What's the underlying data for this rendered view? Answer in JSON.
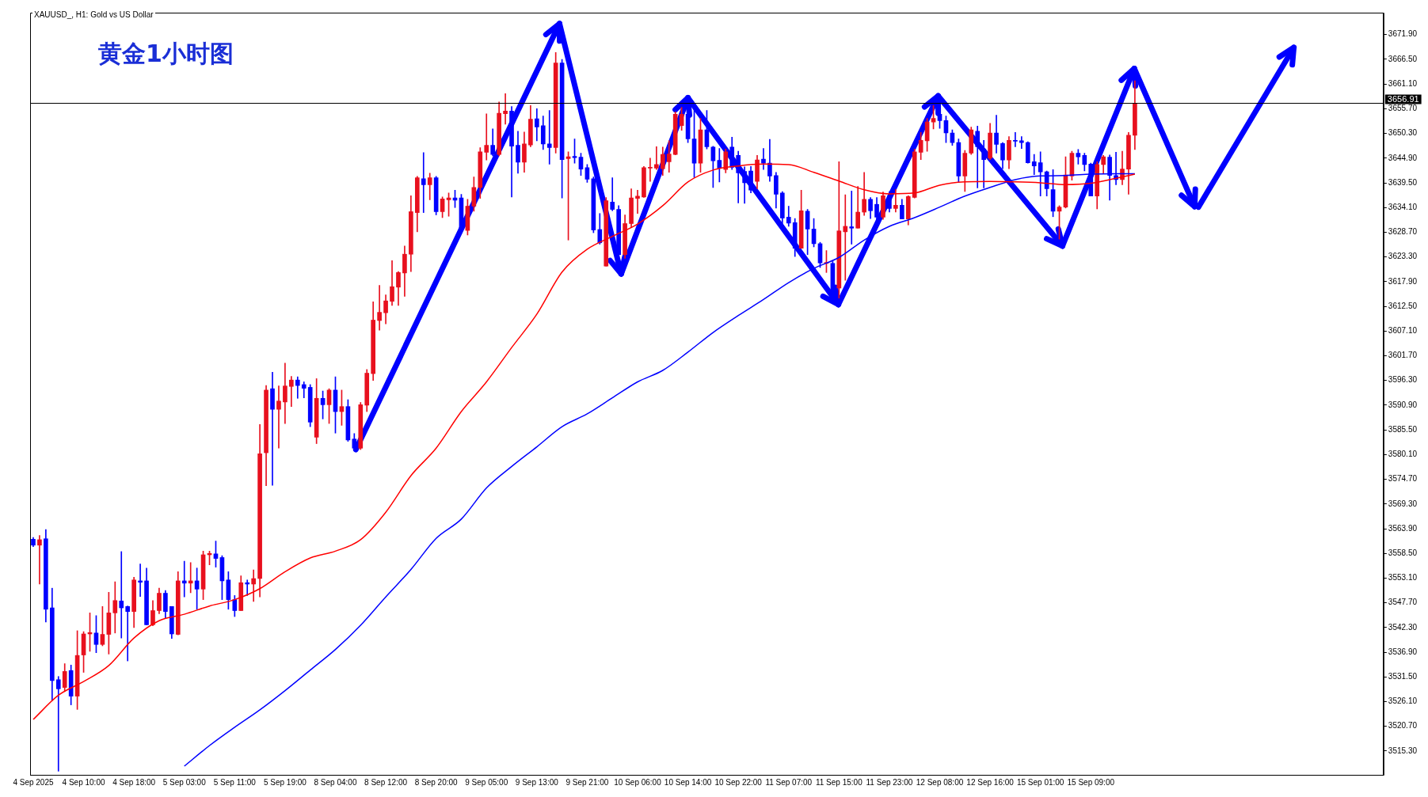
{
  "chart_data": {
    "type": "candlestick",
    "title": "黄金1小时图",
    "subtitle": "XAUUSD_, H1: Gold vs US Dollar",
    "categories": [
      "4 Sep 2025",
      null,
      null,
      null,
      null,
      null,
      null,
      null,
      "4 Sep 10:00",
      null,
      null,
      null,
      null,
      null,
      null,
      null,
      "4 Sep 18:00",
      null,
      null,
      null,
      null,
      null,
      null,
      null,
      "5 Sep 03:00",
      null,
      null,
      null,
      null,
      null,
      null,
      null,
      "5 Sep 11:00",
      null,
      null,
      null,
      null,
      null,
      null,
      null,
      "5 Sep 19:00",
      null,
      null,
      null,
      null,
      null,
      null,
      null,
      "8 Sep 04:00",
      null,
      null,
      null,
      null,
      null,
      null,
      null,
      "8 Sep 12:00",
      null,
      null,
      null,
      null,
      null,
      null,
      null,
      "8 Sep 20:00",
      null,
      null,
      null,
      null,
      null,
      null,
      null,
      "9 Sep 05:00",
      null,
      null,
      null,
      null,
      null,
      null,
      null,
      "9 Sep 13:00",
      null,
      null,
      null,
      null,
      null,
      null,
      null,
      "9 Sep 21:00",
      null,
      null,
      null,
      null,
      null,
      null,
      null,
      "10 Sep 06:00",
      null,
      null,
      null,
      null,
      null,
      null,
      null,
      "10 Sep 14:00",
      null,
      null,
      null,
      null,
      null,
      null,
      null,
      "10 Sep 22:00",
      null,
      null,
      null,
      null,
      null,
      null,
      null,
      "11 Sep 07:00",
      null,
      null,
      null,
      null,
      null,
      null,
      null,
      "11 Sep 15:00",
      null,
      null,
      null,
      null,
      null,
      null,
      null,
      "11 Sep 23:00",
      null,
      null,
      null,
      null,
      null,
      null,
      null,
      "12 Sep 08:00",
      null,
      null,
      null,
      null,
      null,
      null,
      null,
      "12 Sep 16:00",
      null,
      null,
      null,
      null,
      null,
      null,
      null,
      "15 Sep 01:00",
      null,
      null,
      null,
      null,
      null,
      null,
      null,
      "15 Sep 09:00",
      null,
      null,
      null,
      null,
      null,
      null,
      null,
      null,
      null,
      null,
      null,
      null,
      null,
      null,
      null,
      null,
      null,
      null,
      null,
      null,
      null,
      null,
      null,
      null,
      null,
      null,
      null,
      null,
      null,
      null,
      null,
      null,
      null,
      null,
      null,
      null,
      null,
      null,
      null,
      null,
      null,
      null,
      null,
      null,
      null,
      null
    ],
    "ohlc": [
      [
        3561.6,
        3562.0,
        3560.0,
        3560.3
      ],
      [
        3560.3,
        3562.4,
        3551.8,
        3561.5
      ],
      [
        3561.7,
        3563.7,
        3543.5,
        3546.3
      ],
      [
        3546.6,
        3550.9,
        3526.4,
        3530.7
      ],
      [
        3530.9,
        3531.6,
        3510.9,
        3528.9
      ],
      [
        3529.2,
        3534.4,
        3528.3,
        3532.7
      ],
      [
        3532.9,
        3534.1,
        3525.4,
        3527.3
      ],
      [
        3527.3,
        3541.6,
        3524.4,
        3536.2
      ],
      [
        3536.3,
        3541.4,
        3532.5,
        3540.9
      ],
      [
        3540.9,
        3545.5,
        3537.1,
        3541.2
      ],
      [
        3541.1,
        3544.9,
        3536.8,
        3538.6
      ],
      [
        3538.6,
        3546.9,
        3538.3,
        3540.8
      ],
      [
        3540.8,
        3550.0,
        3536.5,
        3545.5
      ],
      [
        3545.5,
        3552.3,
        3541.1,
        3548.2
      ],
      [
        3548.1,
        3558.9,
        3540.0,
        3546.6
      ],
      [
        3546.9,
        3547.0,
        3535.0,
        3545.8
      ],
      [
        3545.8,
        3553.3,
        3542.3,
        3552.7
      ],
      [
        3552.5,
        3556.2,
        3549.1,
        3552.2
      ],
      [
        3552.5,
        3555.3,
        3542.9,
        3542.9
      ],
      [
        3542.9,
        3548.2,
        3542.7,
        3546.0
      ],
      [
        3546.0,
        3550.9,
        3545.3,
        3549.8
      ],
      [
        3549.8,
        3550.4,
        3544.4,
        3545.8
      ],
      [
        3546.9,
        3546.9,
        3539.9,
        3540.9
      ],
      [
        3540.8,
        3554.5,
        3540.7,
        3552.5
      ],
      [
        3552.5,
        3556.8,
        3549.0,
        3552.0
      ],
      [
        3552.0,
        3556.5,
        3549.9,
        3552.5
      ],
      [
        3552.5,
        3555.3,
        3546.3,
        3550.7
      ],
      [
        3550.7,
        3559.0,
        3548.4,
        3558.2
      ],
      [
        3558.2,
        3559.0,
        3556.0,
        3558.5
      ],
      [
        3558.4,
        3561.2,
        3555.5,
        3557.4
      ],
      [
        3557.6,
        3558.0,
        3548.4,
        3552.5
      ],
      [
        3552.7,
        3554.5,
        3546.3,
        3548.4
      ],
      [
        3548.4,
        3549.3,
        3544.7,
        3546.0
      ],
      [
        3546.0,
        3553.6,
        3546.0,
        3552.1
      ],
      [
        3552.1,
        3552.7,
        3549.3,
        3551.8
      ],
      [
        3551.8,
        3554.9,
        3548.0,
        3553.0
      ],
      [
        3553.0,
        3586.7,
        3549.0,
        3580.3
      ],
      [
        3580.5,
        3595.2,
        3573.3,
        3594.2
      ],
      [
        3594.5,
        3598.1,
        3573.4,
        3590.0
      ],
      [
        3590.0,
        3595.1,
        3581.5,
        3591.8
      ],
      [
        3591.6,
        3600.1,
        3586.9,
        3595.1
      ],
      [
        3595.0,
        3597.2,
        3590.6,
        3596.4
      ],
      [
        3596.4,
        3597.1,
        3592.4,
        3595.2
      ],
      [
        3595.4,
        3596.0,
        3592.5,
        3594.6
      ],
      [
        3594.8,
        3595.4,
        3586.2,
        3587.2
      ],
      [
        3583.9,
        3596.7,
        3582.5,
        3592.4
      ],
      [
        3592.4,
        3594.0,
        3587.9,
        3591.0
      ],
      [
        3591.0,
        3594.5,
        3586.9,
        3594.2
      ],
      [
        3594.2,
        3597.1,
        3584.8,
        3589.5
      ],
      [
        3589.5,
        3594.2,
        3586.5,
        3590.6
      ],
      [
        3590.6,
        3592.1,
        3583.0,
        3583.3
      ],
      [
        3583.5,
        3584.7,
        3581.2,
        3581.5
      ],
      [
        3581.5,
        3591.5,
        3581.2,
        3591.0
      ],
      [
        3590.9,
        3598.7,
        3589.5,
        3597.9
      ],
      [
        3597.8,
        3613.5,
        3596.3,
        3609.5
      ],
      [
        3609.4,
        3617.1,
        3607.3,
        3611.2
      ],
      [
        3611.1,
        3615.0,
        3608.7,
        3613.7
      ],
      [
        3613.6,
        3622.5,
        3612.7,
        3616.8
      ],
      [
        3616.7,
        3620.1,
        3612.7,
        3619.9
      ],
      [
        3619.8,
        3625.7,
        3614.7,
        3623.9
      ],
      [
        3623.9,
        3636.7,
        3620.1,
        3633.2
      ],
      [
        3633.0,
        3640.9,
        3628.8,
        3640.6
      ],
      [
        3640.4,
        3646.1,
        3633.0,
        3639.1
      ],
      [
        3639.1,
        3641.6,
        3635.8,
        3640.6
      ],
      [
        3640.6,
        3640.9,
        3632.5,
        3633.2
      ],
      [
        3633.2,
        3636.4,
        3631.9,
        3636.0
      ],
      [
        3635.8,
        3637.3,
        3632.2,
        3636.2
      ],
      [
        3636.2,
        3637.9,
        3634.1,
        3635.7
      ],
      [
        3636.2,
        3637.0,
        3629.1,
        3629.4
      ],
      [
        3629.1,
        3635.9,
        3628.1,
        3634.4
      ],
      [
        3634.4,
        3640.8,
        3633.3,
        3638.5
      ],
      [
        3638.5,
        3647.2,
        3636.1,
        3646.3
      ],
      [
        3646.2,
        3654.6,
        3644.5,
        3647.7
      ],
      [
        3647.7,
        3651.3,
        3645.4,
        3645.7
      ],
      [
        3645.7,
        3657.2,
        3645.4,
        3654.7
      ],
      [
        3654.6,
        3659.0,
        3652.3,
        3655.2
      ],
      [
        3655.2,
        3656.2,
        3636.4,
        3647.5
      ],
      [
        3647.7,
        3650.8,
        3641.6,
        3644.0
      ],
      [
        3644.0,
        3650.6,
        3641.8,
        3648.0
      ],
      [
        3647.8,
        3656.4,
        3647.4,
        3653.4
      ],
      [
        3653.5,
        3655.7,
        3648.7,
        3651.7
      ],
      [
        3652.0,
        3654.1,
        3646.8,
        3648.0
      ],
      [
        3648.0,
        3655.3,
        3643.6,
        3647.2
      ],
      [
        3647.2,
        3668.0,
        3646.0,
        3665.7
      ],
      [
        3665.7,
        3666.5,
        3636.2,
        3644.6
      ],
      [
        3644.8,
        3646.3,
        3627.0,
        3645.2
      ],
      [
        3645.3,
        3649.1,
        3643.8,
        3645.0
      ],
      [
        3645.1,
        3646.0,
        3641.1,
        3642.5
      ],
      [
        3642.8,
        3643.5,
        3639.6,
        3640.3
      ],
      [
        3640.4,
        3640.8,
        3628.6,
        3629.2
      ],
      [
        3629.3,
        3632.8,
        3626.1,
        3626.4
      ],
      [
        3621.3,
        3636.3,
        3621.3,
        3635.6
      ],
      [
        3635.3,
        3640.6,
        3633.4,
        3633.7
      ],
      [
        3633.7,
        3634.5,
        3623.5,
        3623.8
      ],
      [
        3623.8,
        3632.5,
        3623.0,
        3630.6
      ],
      [
        3630.6,
        3638.2,
        3629.7,
        3636.2
      ],
      [
        3636.1,
        3637.9,
        3632.8,
        3636.6
      ],
      [
        3636.4,
        3643.1,
        3636.3,
        3642.8
      ],
      [
        3642.7,
        3644.9,
        3639.8,
        3642.9
      ],
      [
        3642.7,
        3647.4,
        3642.4,
        3643.5
      ],
      [
        3642.6,
        3647.3,
        3641.1,
        3645.7
      ],
      [
        3644.1,
        3648.7,
        3641.8,
        3645.8
      ],
      [
        3645.7,
        3655.0,
        3645.6,
        3654.5
      ],
      [
        3652.0,
        3656.0,
        3651.0,
        3654.5
      ],
      [
        3654.5,
        3654.8,
        3648.3,
        3649.1
      ],
      [
        3649.1,
        3655.6,
        3640.7,
        3643.8
      ],
      [
        3643.8,
        3653.6,
        3641.8,
        3651.1
      ],
      [
        3651.1,
        3655.3,
        3646.9,
        3647.4
      ],
      [
        3647.3,
        3647.5,
        3638.5,
        3644.3
      ],
      [
        3644.4,
        3647.0,
        3639.7,
        3642.7
      ],
      [
        3642.4,
        3646.9,
        3641.7,
        3646.3
      ],
      [
        3647.3,
        3649.5,
        3642.4,
        3642.9
      ],
      [
        3645.5,
        3646.4,
        3635.1,
        3641.7
      ],
      [
        3642.0,
        3643.0,
        3635.0,
        3639.5
      ],
      [
        3642.1,
        3643.1,
        3637.3,
        3637.9
      ],
      [
        3639.8,
        3645.5,
        3638.2,
        3644.5
      ],
      [
        3644.7,
        3647.0,
        3642.4,
        3643.8
      ],
      [
        3643.8,
        3649.0,
        3639.8,
        3641.0
      ],
      [
        3641.1,
        3641.8,
        3634.0,
        3637.0
      ],
      [
        3637.3,
        3637.6,
        3630.6,
        3631.8
      ],
      [
        3632.0,
        3634.4,
        3630.0,
        3630.7
      ],
      [
        3630.8,
        3631.7,
        3623.4,
        3625.2
      ],
      [
        3625.2,
        3637.9,
        3625.2,
        3633.4
      ],
      [
        3633.3,
        3633.7,
        3623.8,
        3629.4
      ],
      [
        3629.4,
        3631.7,
        3625.5,
        3626.2
      ],
      [
        3626.2,
        3626.5,
        3621.0,
        3622.0
      ],
      [
        3621.9,
        3624.7,
        3619.9,
        3622.1
      ],
      [
        3621.9,
        3622.3,
        3613.5,
        3614.3
      ],
      [
        3616.5,
        3644.1,
        3614.3,
        3629.0
      ],
      [
        3628.8,
        3636.9,
        3618.2,
        3630.0
      ],
      [
        3629.9,
        3637.7,
        3626.1,
        3629.6
      ],
      [
        3629.6,
        3638.7,
        3629.6,
        3633.1
      ],
      [
        3633.1,
        3641.8,
        3632.4,
        3635.9
      ],
      [
        3635.9,
        3636.3,
        3631.7,
        3633.4
      ],
      [
        3634.8,
        3636.3,
        3631.4,
        3632.0
      ],
      [
        3632.0,
        3637.5,
        3631.5,
        3636.7
      ],
      [
        3636.7,
        3637.6,
        3633.1,
        3633.9
      ],
      [
        3633.9,
        3638.0,
        3633.1,
        3634.6
      ],
      [
        3634.6,
        3635.9,
        3631.6,
        3631.6
      ],
      [
        3631.6,
        3636.7,
        3630.3,
        3636.5
      ],
      [
        3636.3,
        3646.9,
        3636.2,
        3646.3
      ],
      [
        3646.2,
        3650.5,
        3644.6,
        3648.8
      ],
      [
        3648.7,
        3653.6,
        3646.4,
        3652.8
      ],
      [
        3652.8,
        3656.4,
        3651.3,
        3653.6
      ],
      [
        3654.5,
        3656.4,
        3651.4,
        3653.1
      ],
      [
        3653.1,
        3654.1,
        3648.3,
        3650.4
      ],
      [
        3650.4,
        3651.1,
        3647.7,
        3648.3
      ],
      [
        3648.3,
        3649.1,
        3639.6,
        3641.0
      ],
      [
        3641.0,
        3646.6,
        3637.6,
        3646.0
      ],
      [
        3646.0,
        3651.7,
        3645.7,
        3651.1
      ],
      [
        3650.8,
        3651.9,
        3638.4,
        3647.4
      ],
      [
        3646.9,
        3648.8,
        3638.4,
        3644.6
      ],
      [
        3644.9,
        3652.5,
        3644.6,
        3650.4
      ],
      [
        3650.4,
        3654.3,
        3646.0,
        3647.9
      ],
      [
        3648.1,
        3648.3,
        3642.6,
        3644.5
      ],
      [
        3644.5,
        3649.6,
        3642.6,
        3648.8
      ],
      [
        3648.8,
        3650.5,
        3647.4,
        3648.6
      ],
      [
        3648.7,
        3649.6,
        3647.0,
        3648.3
      ],
      [
        3648.3,
        3648.5,
        3643.8,
        3643.9
      ],
      [
        3644.1,
        3645.7,
        3641.3,
        3643.2
      ],
      [
        3643.9,
        3646.3,
        3636.6,
        3641.9
      ],
      [
        3641.9,
        3642.1,
        3636.6,
        3638.2
      ],
      [
        3638.0,
        3642.4,
        3632.1,
        3633.3
      ],
      [
        3633.3,
        3634.5,
        3627.2,
        3634.2
      ],
      [
        3634.2,
        3645.2,
        3634.0,
        3641.2
      ],
      [
        3641.0,
        3646.4,
        3640.1,
        3646.0
      ],
      [
        3646.0,
        3646.8,
        3643.6,
        3645.2
      ],
      [
        3645.5,
        3646.0,
        3642.1,
        3643.5
      ],
      [
        3643.6,
        3643.8,
        3636.6,
        3636.6
      ],
      [
        3636.6,
        3644.1,
        3633.8,
        3643.5
      ],
      [
        3643.5,
        3645.5,
        3641.5,
        3645.2
      ],
      [
        3645.1,
        3645.6,
        3635.7,
        3641.1
      ],
      [
        3641.1,
        3646.2,
        3639.1,
        3640.2
      ],
      [
        3640.2,
        3646.4,
        3639.1,
        3642.5
      ],
      [
        3642.5,
        3650.5,
        3637.0,
        3649.9
      ],
      [
        3649.9,
        3661.8,
        3646.8,
        3656.91
      ],
      null,
      null,
      null,
      null,
      null,
      null,
      null,
      null,
      null,
      null,
      null,
      null,
      null,
      null,
      null,
      null,
      null,
      null,
      null,
      null,
      null,
      null,
      null,
      null,
      null,
      null,
      null,
      null,
      null,
      null,
      null,
      null,
      null,
      null,
      null,
      null,
      null,
      null,
      null
    ],
    "colors": [
      "#0000ff",
      "#e8101e",
      "#0000ff",
      "#0000ff",
      "#0000ff",
      "#e8101e",
      "#0000ff",
      "#e8101e",
      "#e8101e",
      "#e8101e",
      "#0000ff",
      "#e8101e",
      "#e8101e",
      "#e8101e",
      "#0000ff",
      "#0000ff",
      "#e8101e",
      "#0000ff",
      "#0000ff",
      "#e8101e",
      "#e8101e",
      "#0000ff",
      "#0000ff",
      "#e8101e",
      "#0000ff",
      "#e8101e",
      "#0000ff",
      "#e8101e",
      "#e8101e",
      "#0000ff",
      "#0000ff",
      "#0000ff",
      "#0000ff",
      "#e8101e",
      "#0000ff",
      "#e8101e",
      "#e8101e",
      "#e8101e",
      "#0000ff",
      "#e8101e",
      "#e8101e",
      "#e8101e",
      "#0000ff",
      "#0000ff",
      "#0000ff",
      "#e8101e",
      "#0000ff",
      "#e8101e",
      "#0000ff",
      "#e8101e",
      "#0000ff",
      "#0000ff",
      "#e8101e",
      "#e8101e",
      "#e8101e",
      "#e8101e",
      "#e8101e",
      "#e8101e",
      "#e8101e",
      "#e8101e",
      "#e8101e",
      "#e8101e",
      "#0000ff",
      "#e8101e",
      "#0000ff",
      "#e8101e",
      "#e8101e",
      "#0000ff",
      "#0000ff",
      "#e8101e",
      "#e8101e",
      "#e8101e",
      "#e8101e",
      "#0000ff",
      "#e8101e",
      "#e8101e",
      "#0000ff",
      "#0000ff",
      "#e8101e",
      "#e8101e",
      "#0000ff",
      "#0000ff",
      "#0000ff",
      "#e8101e",
      "#0000ff",
      "#e8101e",
      "#0000ff",
      "#0000ff",
      "#0000ff",
      "#0000ff",
      "#0000ff",
      "#e8101e",
      "#0000ff",
      "#0000ff",
      "#e8101e",
      "#e8101e",
      "#e8101e",
      "#e8101e",
      "#e8101e",
      "#e8101e",
      "#e8101e",
      "#e8101e",
      "#e8101e",
      "#e8101e",
      "#0000ff",
      "#0000ff",
      "#e8101e",
      "#0000ff",
      "#0000ff",
      "#0000ff",
      "#e8101e",
      "#0000ff",
      "#0000ff",
      "#0000ff",
      "#0000ff",
      "#e8101e",
      "#0000ff",
      "#0000ff",
      "#0000ff",
      "#0000ff",
      "#0000ff",
      "#0000ff",
      "#e8101e",
      "#0000ff",
      "#0000ff",
      "#0000ff",
      "#e8101e",
      "#0000ff",
      "#e8101e",
      "#e8101e",
      "#0000ff",
      "#e8101e",
      "#e8101e",
      "#0000ff",
      "#0000ff",
      "#e8101e",
      "#0000ff",
      "#e8101e",
      "#0000ff",
      "#e8101e",
      "#e8101e",
      "#e8101e",
      "#e8101e",
      "#e8101e",
      "#0000ff",
      "#0000ff",
      "#0000ff",
      "#0000ff",
      "#e8101e",
      "#e8101e",
      "#0000ff",
      "#0000ff",
      "#e8101e",
      "#0000ff",
      "#0000ff",
      "#e8101e",
      "#0000ff",
      "#0000ff",
      "#0000ff",
      "#0000ff",
      "#0000ff",
      "#0000ff",
      "#0000ff",
      "#e8101e",
      "#e8101e",
      "#e8101e",
      "#0000ff",
      "#0000ff",
      "#0000ff",
      "#e8101e",
      "#e8101e",
      "#0000ff",
      "#0000ff",
      "#e8101e",
      "#e8101e",
      "#e8101e",
      null,
      null,
      null,
      null,
      null,
      null,
      null,
      null,
      null,
      null,
      null,
      null,
      null,
      null,
      null,
      null,
      null,
      null,
      null,
      null,
      null,
      null,
      null,
      null,
      null,
      null,
      null,
      null,
      null,
      null,
      null,
      null,
      null,
      null,
      null,
      null,
      null,
      null,
      null
    ],
    "series": [
      {
        "type": "line",
        "color": "#ff0000",
        "values": [
          3522.2,
          null,
          null,
          null,
          3527.5,
          null,
          null,
          null,
          3530.5,
          null,
          null,
          null,
          3534.0,
          null,
          null,
          null,
          3540.0,
          null,
          null,
          null,
          3543.8,
          null,
          null,
          null,
          3545.2,
          null,
          null,
          null,
          3547.0,
          null,
          null,
          null,
          3548.4,
          null,
          null,
          null,
          3550.8,
          null,
          null,
          null,
          3554.5,
          null,
          null,
          null,
          3557.5,
          null,
          null,
          null,
          3559.0,
          null,
          null,
          null,
          3561.5,
          null,
          null,
          null,
          3567.5,
          null,
          null,
          null,
          3575.5,
          null,
          null,
          null,
          3581.5,
          null,
          null,
          null,
          3589.5,
          null,
          null,
          null,
          3596.0,
          null,
          null,
          null,
          3603.5,
          null,
          null,
          null,
          3610.8,
          null,
          null,
          null,
          3620.0,
          null,
          null,
          null,
          3625.0,
          null,
          null,
          null,
          3627.8,
          null,
          null,
          null,
          3630.5,
          null,
          null,
          null,
          3634.5,
          null,
          null,
          null,
          3639.7,
          null,
          null,
          null,
          3642.3,
          null,
          null,
          null,
          3643.2,
          null,
          null,
          null,
          3643.6,
          null,
          null,
          null,
          3643.5,
          null,
          null,
          null,
          3641.8,
          null,
          null,
          null,
          3639.9,
          null,
          null,
          null,
          3638.0,
          null,
          null,
          null,
          3637.1,
          null,
          null,
          null,
          3637.3,
          null,
          null,
          null,
          3639.0,
          null,
          null,
          null,
          3639.7,
          null,
          null,
          null,
          3639.8,
          null,
          null,
          null,
          3639.7,
          null,
          null,
          null,
          3639.5,
          null,
          null,
          null,
          3639.1,
          null,
          null,
          null,
          3639.4,
          null,
          null,
          null,
          3640.5,
          null,
          null,
          3641.4,
          null,
          null,
          null,
          null,
          null,
          null,
          null,
          null,
          null,
          null,
          null,
          null,
          null,
          null,
          null,
          null,
          null,
          null,
          null,
          null,
          null,
          null,
          null,
          null,
          null,
          null,
          null,
          null,
          null,
          null,
          null,
          null,
          null,
          null,
          null,
          null,
          null,
          null,
          null
        ]
      },
      {
        "type": "line",
        "color": "#0000ff",
        "values": [
          null,
          null,
          null,
          null,
          null,
          null,
          null,
          null,
          null,
          null,
          null,
          null,
          null,
          null,
          null,
          null,
          null,
          null,
          null,
          null,
          null,
          null,
          null,
          null,
          3512.0,
          null,
          null,
          null,
          3516.5,
          null,
          null,
          null,
          3520.5,
          null,
          null,
          null,
          3524.3,
          null,
          null,
          null,
          3528.5,
          null,
          null,
          null,
          3533.0,
          null,
          null,
          null,
          3537.5,
          null,
          null,
          null,
          3542.8,
          null,
          null,
          null,
          3549.0,
          null,
          null,
          null,
          3555.0,
          null,
          null,
          null,
          3561.8,
          null,
          null,
          null,
          3566.0,
          null,
          null,
          null,
          3572.8,
          null,
          null,
          null,
          3577.5,
          null,
          null,
          null,
          3581.8,
          null,
          null,
          null,
          3586.2,
          null,
          null,
          null,
          3589.0,
          null,
          null,
          null,
          3592.5,
          null,
          null,
          null,
          3596.0,
          null,
          null,
          null,
          3598.5,
          null,
          null,
          null,
          3602.5,
          null,
          null,
          null,
          3606.8,
          null,
          null,
          null,
          3610.5,
          null,
          null,
          null,
          3614.0,
          null,
          null,
          null,
          3617.7,
          null,
          null,
          null,
          3620.8,
          null,
          null,
          null,
          3623.2,
          null,
          null,
          null,
          3627.0,
          null,
          null,
          null,
          3630.0,
          null,
          null,
          null,
          3631.9,
          null,
          null,
          null,
          3634.2,
          null,
          null,
          null,
          3636.6,
          null,
          null,
          null,
          3638.5,
          null,
          null,
          null,
          3640.2,
          null,
          null,
          null,
          3641.0,
          null,
          null,
          null,
          3641.1,
          null,
          null,
          null,
          3641.4,
          null,
          null,
          null,
          3641.5,
          null,
          null,
          3641.5,
          null,
          null,
          null,
          null,
          null,
          null,
          null,
          null,
          null,
          null,
          null,
          null,
          null,
          null,
          null,
          null,
          null,
          null,
          null,
          null,
          null,
          null,
          null,
          null,
          null,
          null,
          null,
          null,
          null,
          null,
          null,
          null,
          null,
          null,
          null,
          null,
          null,
          null,
          null
        ]
      }
    ],
    "ylim": [
      3510.1,
      3676.7
    ],
    "yticks": [
      {
        "value": 3515.3,
        "label": "3515.30"
      },
      {
        "value": 3520.7,
        "label": "3520.70"
      },
      {
        "value": 3526.1,
        "label": "3526.10"
      },
      {
        "value": 3531.5,
        "label": "3531.50"
      },
      {
        "value": 3536.9,
        "label": "3536.90"
      },
      {
        "value": 3542.3,
        "label": "3542.30"
      },
      {
        "value": 3547.7,
        "label": "3547.70"
      },
      {
        "value": 3553.1,
        "label": "3553.10"
      },
      {
        "value": 3558.5,
        "label": "3558.50"
      },
      {
        "value": 3563.9,
        "label": "3563.90"
      },
      {
        "value": 3569.3,
        "label": "3569.30"
      },
      {
        "value": 3574.7,
        "label": "3574.70"
      },
      {
        "value": 3580.1,
        "label": "3580.10"
      },
      {
        "value": 3585.5,
        "label": "3585.50"
      },
      {
        "value": 3590.9,
        "label": "3590.90"
      },
      {
        "value": 3596.3,
        "label": "3596.30"
      },
      {
        "value": 3601.7,
        "label": "3601.70"
      },
      {
        "value": 3607.1,
        "label": "3607.10"
      },
      {
        "value": 3612.5,
        "label": "3612.50"
      },
      {
        "value": 3617.9,
        "label": "3617.90"
      },
      {
        "value": 3623.3,
        "label": "3623.30"
      },
      {
        "value": 3628.7,
        "label": "3628.70"
      },
      {
        "value": 3634.1,
        "label": "3634.10"
      },
      {
        "value": 3639.5,
        "label": "3639.50"
      },
      {
        "value": 3644.9,
        "label": "3644.90"
      },
      {
        "value": 3650.3,
        "label": "3650.30"
      },
      {
        "value": 3655.7,
        "label": "3655.70"
      },
      {
        "value": 3661.1,
        "label": "3661.10"
      },
      {
        "value": 3666.5,
        "label": "3666.50"
      },
      {
        "value": 3671.9,
        "label": "3671.90"
      }
    ],
    "ref_lines": [
      {
        "axis": "y",
        "value": 3656.91,
        "label": "3656.91",
        "color": "#000000"
      }
    ]
  }
}
